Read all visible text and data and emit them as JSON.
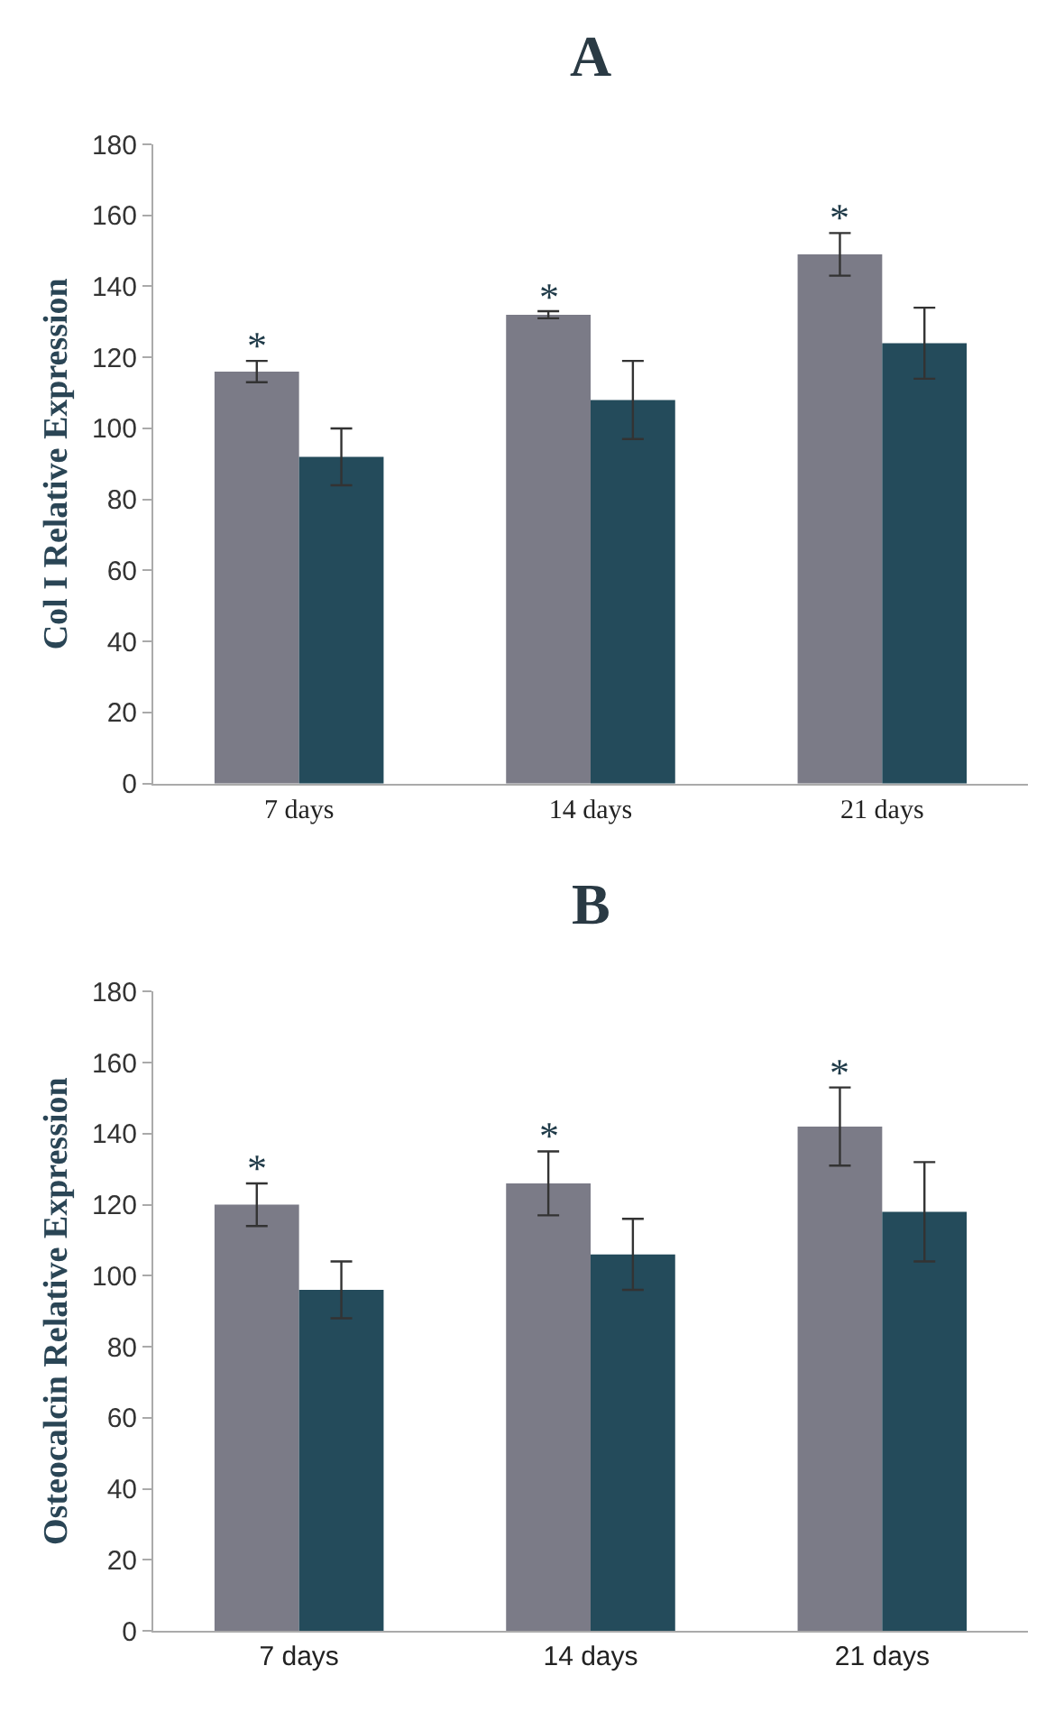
{
  "chart_data": [
    {
      "type": "bar",
      "title": "A",
      "ylabel": "Col I Relative Expression",
      "categories": [
        "7 days",
        "14 days",
        "21 days"
      ],
      "series": [
        {
          "color": "#7b7b87",
          "values": [
            116,
            132,
            149
          ],
          "errors": [
            3,
            1,
            6
          ]
        },
        {
          "color": "#244b5b",
          "values": [
            92,
            108,
            124
          ],
          "errors": [
            8,
            11,
            10
          ]
        }
      ],
      "ylim": [
        0,
        180
      ],
      "yticks": [
        0,
        20,
        40,
        60,
        80,
        100,
        120,
        140,
        160,
        180
      ],
      "annotations": [
        "*",
        "*",
        "*"
      ]
    },
    {
      "type": "bar",
      "title": "B",
      "ylabel": "Osteocalcin Relative Expression",
      "categories": [
        "7 days",
        "14 days",
        "21 days"
      ],
      "series": [
        {
          "color": "#7b7b87",
          "values": [
            120,
            126,
            142
          ],
          "errors": [
            6,
            9,
            11
          ]
        },
        {
          "color": "#244b5b",
          "values": [
            96,
            106,
            118
          ],
          "errors": [
            8,
            10,
            14
          ]
        }
      ],
      "ylim": [
        0,
        180
      ],
      "yticks": [
        0,
        20,
        40,
        60,
        80,
        100,
        120,
        140,
        160,
        180
      ],
      "annotations": [
        "*",
        "*",
        "*"
      ]
    }
  ]
}
